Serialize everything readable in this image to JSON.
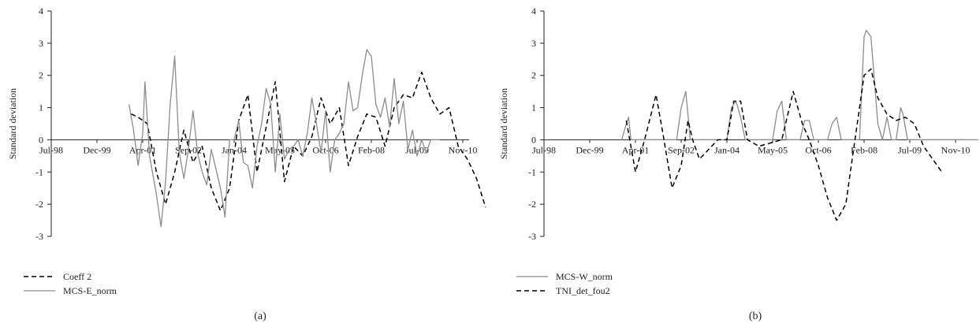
{
  "chart_data": [
    {
      "type": "line",
      "panel_label": "(a)",
      "ylabel": "Standard deviation",
      "xlabel": "",
      "ylim": [
        -3,
        4
      ],
      "yticks": [
        -3,
        -2,
        -1,
        0,
        1,
        2,
        3,
        4
      ],
      "xtick_labels": [
        "Jul-98",
        "Dec-99",
        "Apr-01",
        "Sep-02",
        "Jan-04",
        "May-05",
        "Oct-06",
        "Feb-08",
        "Jul-09",
        "Nov-10"
      ],
      "grid": false,
      "legend_position": "bottom-left",
      "series": [
        {
          "name": "Coeff 2",
          "style": "dashed",
          "color": "#000000",
          "x": [
            1.75,
            1.9,
            2.1,
            2.3,
            2.5,
            2.7,
            2.9,
            3.1,
            3.3,
            3.5,
            3.7,
            3.9,
            4.1,
            4.3,
            4.5,
            4.7,
            4.9,
            5.1,
            5.3,
            5.5,
            5.7,
            5.9,
            6.1,
            6.3,
            6.5,
            6.7,
            6.9,
            7.1,
            7.3,
            7.5,
            7.7,
            7.9,
            8.1,
            8.3,
            8.5,
            8.7,
            8.9,
            9.1,
            9.3,
            9.5
          ],
          "y": [
            0.8,
            0.7,
            0.5,
            -1.0,
            -2.0,
            -1.0,
            0.3,
            -0.7,
            -0.2,
            -1.5,
            -2.2,
            -1.5,
            0.6,
            1.4,
            -1.0,
            0.4,
            1.8,
            -1.3,
            -0.2,
            -0.5,
            0.1,
            1.3,
            0.5,
            1.0,
            -0.8,
            0.1,
            0.8,
            0.7,
            -0.2,
            1.0,
            1.4,
            1.3,
            2.1,
            1.3,
            0.8,
            1.0,
            -0.2,
            -0.6,
            -1.2,
            -2.1
          ]
        },
        {
          "name": "MCS-E_norm",
          "style": "solid",
          "color": "#8c8c8c",
          "x": [
            1.7,
            1.8,
            1.9,
            2.0,
            2.05,
            2.15,
            2.3,
            2.4,
            2.5,
            2.6,
            2.7,
            2.8,
            2.9,
            3.0,
            3.1,
            3.2,
            3.3,
            3.4,
            3.5,
            3.6,
            3.7,
            3.8,
            3.9,
            4.0,
            4.1,
            4.2,
            4.3,
            4.4,
            4.5,
            4.6,
            4.7,
            4.8,
            4.9,
            5.0,
            5.1,
            5.2,
            5.3,
            5.4,
            5.5,
            5.6,
            5.7,
            5.8,
            5.9,
            6.0,
            6.1,
            6.2,
            6.3,
            6.4,
            6.5,
            6.6,
            6.7,
            6.8,
            6.9,
            7.0,
            7.1,
            7.2,
            7.3,
            7.4,
            7.5,
            7.6,
            7.7,
            7.8,
            7.9,
            8.0,
            8.1,
            8.2,
            8.3,
            8.4,
            8.5
          ],
          "y": [
            1.1,
            0.3,
            -0.8,
            0.2,
            1.8,
            -0.5,
            -1.7,
            -2.7,
            -1.3,
            1.1,
            2.6,
            -0.4,
            -1.2,
            -0.3,
            0.9,
            -0.4,
            -1.0,
            -1.4,
            -0.3,
            -0.9,
            -1.5,
            -2.4,
            0.0,
            0.0,
            0.6,
            -0.7,
            -0.8,
            -1.5,
            -0.2,
            0.5,
            1.6,
            1.1,
            -1.0,
            0.8,
            -0.6,
            -0.3,
            -0.2,
            0.0,
            -0.5,
            0.2,
            1.3,
            0.5,
            -0.4,
            0.9,
            -1.0,
            0.0,
            0.2,
            0.5,
            1.8,
            0.9,
            1.0,
            2.0,
            2.8,
            2.6,
            1.1,
            0.7,
            1.3,
            0.4,
            1.9,
            0.5,
            1.2,
            -0.3,
            0.3,
            -0.5,
            0.0,
            -0.4,
            0.0,
            0.0,
            0.0
          ]
        }
      ]
    },
    {
      "type": "line",
      "panel_label": "(b)",
      "ylabel": "Standard deviation",
      "xlabel": "",
      "ylim": [
        -3,
        4
      ],
      "yticks": [
        -3,
        -2,
        -1,
        0,
        1,
        2,
        3,
        4
      ],
      "xtick_labels": [
        "Jul-98",
        "Dec-99",
        "Apr-01",
        "Sep-02",
        "Jan-04",
        "May-05",
        "Oct-06",
        "Feb-08",
        "Jul-09",
        "Nov-10"
      ],
      "grid": false,
      "legend_position": "bottom-left",
      "series": [
        {
          "name": "MCS-W_norm",
          "style": "solid",
          "color": "#8c8c8c",
          "x": [
            1.7,
            1.8,
            1.85,
            1.9,
            2.0,
            2.9,
            3.0,
            3.1,
            3.2,
            3.3,
            3.4,
            4.0,
            4.1,
            4.2,
            4.3,
            4.4,
            4.5,
            5.0,
            5.1,
            5.2,
            5.3,
            5.6,
            5.7,
            5.8,
            5.9,
            6.2,
            6.3,
            6.4,
            6.5,
            6.9,
            7.0,
            7.05,
            7.15,
            7.3,
            7.4,
            7.5,
            7.6,
            7.7,
            7.8,
            7.85,
            7.95,
            8.05,
            8.2,
            9.5
          ],
          "y": [
            0.0,
            0.5,
            0.7,
            0.0,
            0.0,
            0.0,
            1.0,
            1.5,
            0.0,
            0.0,
            0.0,
            0.0,
            1.0,
            1.2,
            0.7,
            0.0,
            0.0,
            0.0,
            0.9,
            1.2,
            0.0,
            0.0,
            0.6,
            0.6,
            0.0,
            0.0,
            0.5,
            0.7,
            0.0,
            0.0,
            3.2,
            3.4,
            3.2,
            0.5,
            0.0,
            0.7,
            0.0,
            0.0,
            1.0,
            0.8,
            0.0,
            0.0,
            0.0,
            0.0
          ]
        },
        {
          "name": "TNI_det_fou2",
          "style": "dashed",
          "color": "#000000",
          "x": [
            1.8,
            2.0,
            2.2,
            2.45,
            2.6,
            2.8,
            3.0,
            3.15,
            3.25,
            3.4,
            3.8,
            4.0,
            4.15,
            4.3,
            4.45,
            4.7,
            5.2,
            5.45,
            5.65,
            5.8,
            6.0,
            6.2,
            6.4,
            6.6,
            6.8,
            7.0,
            7.15,
            7.3,
            7.5,
            7.7,
            7.9,
            8.1,
            8.3,
            8.5,
            8.7
          ],
          "y": [
            0.6,
            -1.0,
            0.0,
            1.4,
            0.2,
            -1.5,
            -0.8,
            0.6,
            0.0,
            -0.6,
            0.0,
            0.0,
            1.2,
            1.2,
            0.0,
            -0.2,
            0.0,
            1.5,
            0.5,
            0.0,
            -0.8,
            -1.8,
            -2.5,
            -2.0,
            0.0,
            2.0,
            2.2,
            1.3,
            0.8,
            0.6,
            0.7,
            0.5,
            -0.2,
            -0.6,
            -1.0
          ]
        }
      ]
    }
  ]
}
